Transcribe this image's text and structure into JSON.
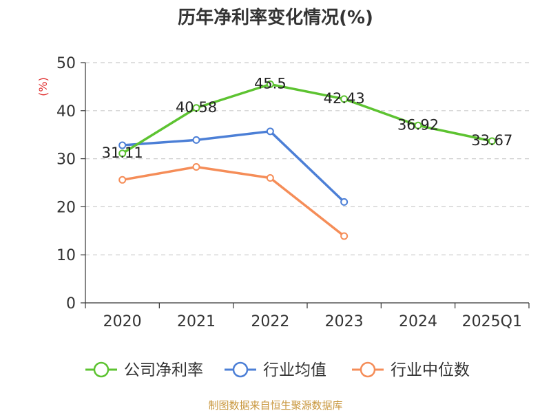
{
  "chart_data": {
    "type": "line",
    "title": "历年净利率变化情况(%)",
    "ylabel": "(%)",
    "xlabel": "",
    "categories": [
      "2020",
      "2021",
      "2022",
      "2023",
      "2024",
      "2025Q1"
    ],
    "ylim": [
      0,
      50
    ],
    "yticks": [
      0,
      10,
      20,
      30,
      40,
      50
    ],
    "grid": true,
    "legend_position": "bottom",
    "series": [
      {
        "name": "公司净利率",
        "color": "#5DC331",
        "values": [
          31.11,
          40.58,
          45.5,
          42.43,
          36.92,
          33.67
        ],
        "labels": [
          "31.11",
          "40.58",
          "45.5",
          "42.43",
          "36.92",
          "33.67"
        ]
      },
      {
        "name": "行业均值",
        "color": "#4C7FD6",
        "values": [
          32.8,
          33.9,
          35.7,
          21.0,
          null,
          null
        ]
      },
      {
        "name": "行业中位数",
        "color": "#F58D58",
        "values": [
          25.6,
          28.3,
          26.0,
          13.9,
          null,
          null
        ]
      }
    ],
    "source": "制图数据来自恒生聚源数据库",
    "source_color": "#C8963C",
    "ylabel_color": "#E03030"
  }
}
